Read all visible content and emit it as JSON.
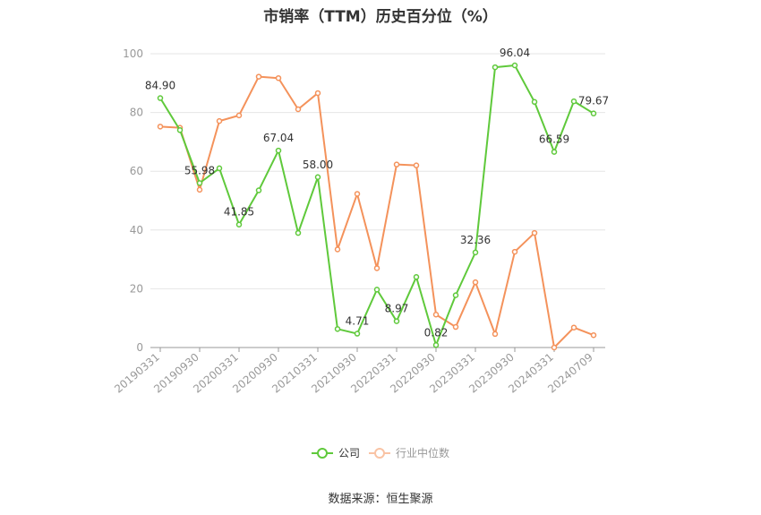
{
  "chart_data": {
    "type": "line",
    "title": "市销率（TTM）历史百分位（%）",
    "source": "数据来源：恒生聚源",
    "ylim": [
      0,
      100
    ],
    "yticks": [
      0,
      20,
      40,
      60,
      80,
      100
    ],
    "grid": true,
    "legend_position": "bottom",
    "categories": [
      "20190331",
      "20190630",
      "20190930",
      "20191231",
      "20200331",
      "20200630",
      "20200930",
      "20201231",
      "20210331",
      "20210630",
      "20210930",
      "20211231",
      "20220331",
      "20220630",
      "20220930",
      "20221231",
      "20230331",
      "20230630",
      "20230930",
      "20231231",
      "20240331",
      "20240630",
      "20240709"
    ],
    "x_tick_labels": [
      "20190331",
      "20190930",
      "20200331",
      "20200930",
      "20210331",
      "20210930",
      "20220331",
      "20220930",
      "20230331",
      "20230930",
      "20240331",
      "20240709"
    ],
    "series": [
      {
        "name": "公司",
        "color": "#5fc93b",
        "values": [
          84.9,
          74.0,
          55.98,
          61.0,
          41.85,
          53.5,
          67.04,
          39.0,
          58.0,
          6.3,
          4.71,
          19.7,
          8.97,
          24.0,
          0.82,
          17.8,
          32.36,
          95.4,
          96.04,
          83.6,
          66.59,
          83.8,
          79.67
        ],
        "labels": {
          "0": "84.90",
          "2": "55.98",
          "4": "41.85",
          "6": "67.04",
          "8": "58.00",
          "10": "4.71",
          "12": "8.97",
          "14": "0.82",
          "16": "32.36",
          "18": "96.04",
          "20": "66.59",
          "22": "79.67"
        }
      },
      {
        "name": "行业中位数",
        "color": "#f4925b",
        "values": [
          75.2,
          74.8,
          53.7,
          77.1,
          79.0,
          92.2,
          91.7,
          81.1,
          86.6,
          33.4,
          52.3,
          27.0,
          62.3,
          62.0,
          11.2,
          7.0,
          22.2,
          4.6,
          32.6,
          39.0,
          0.0,
          6.8,
          4.2
        ]
      }
    ]
  }
}
